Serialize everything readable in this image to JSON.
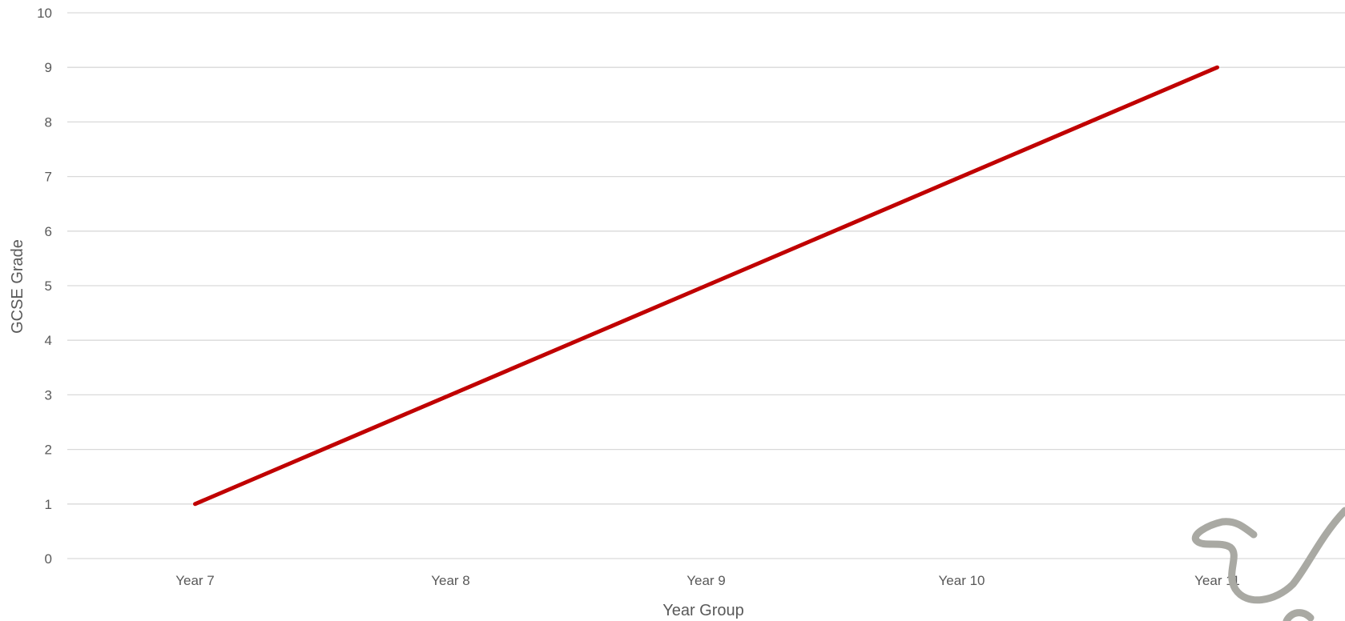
{
  "chart_data": {
    "type": "line",
    "categories": [
      "Year 7",
      "Year 8",
      "Year 9",
      "Year 10",
      "Year 11"
    ],
    "series": [
      {
        "values": [
          1,
          3,
          5,
          7,
          9
        ]
      }
    ],
    "xlabel": "Year Group",
    "ylabel": "GCSE Grade",
    "ylim": [
      0,
      10
    ],
    "yticks": [
      "0",
      "1",
      "2",
      "3",
      "4",
      "5",
      "6",
      "7",
      "8",
      "9",
      "10"
    ],
    "grid": true,
    "legend": "none",
    "colors": {
      "series": "#c00000",
      "gridline": "#d9d9d9",
      "text": "#595959",
      "decoration": "#a9a9a3"
    },
    "decoration_icon": "pencil-squiggle"
  }
}
